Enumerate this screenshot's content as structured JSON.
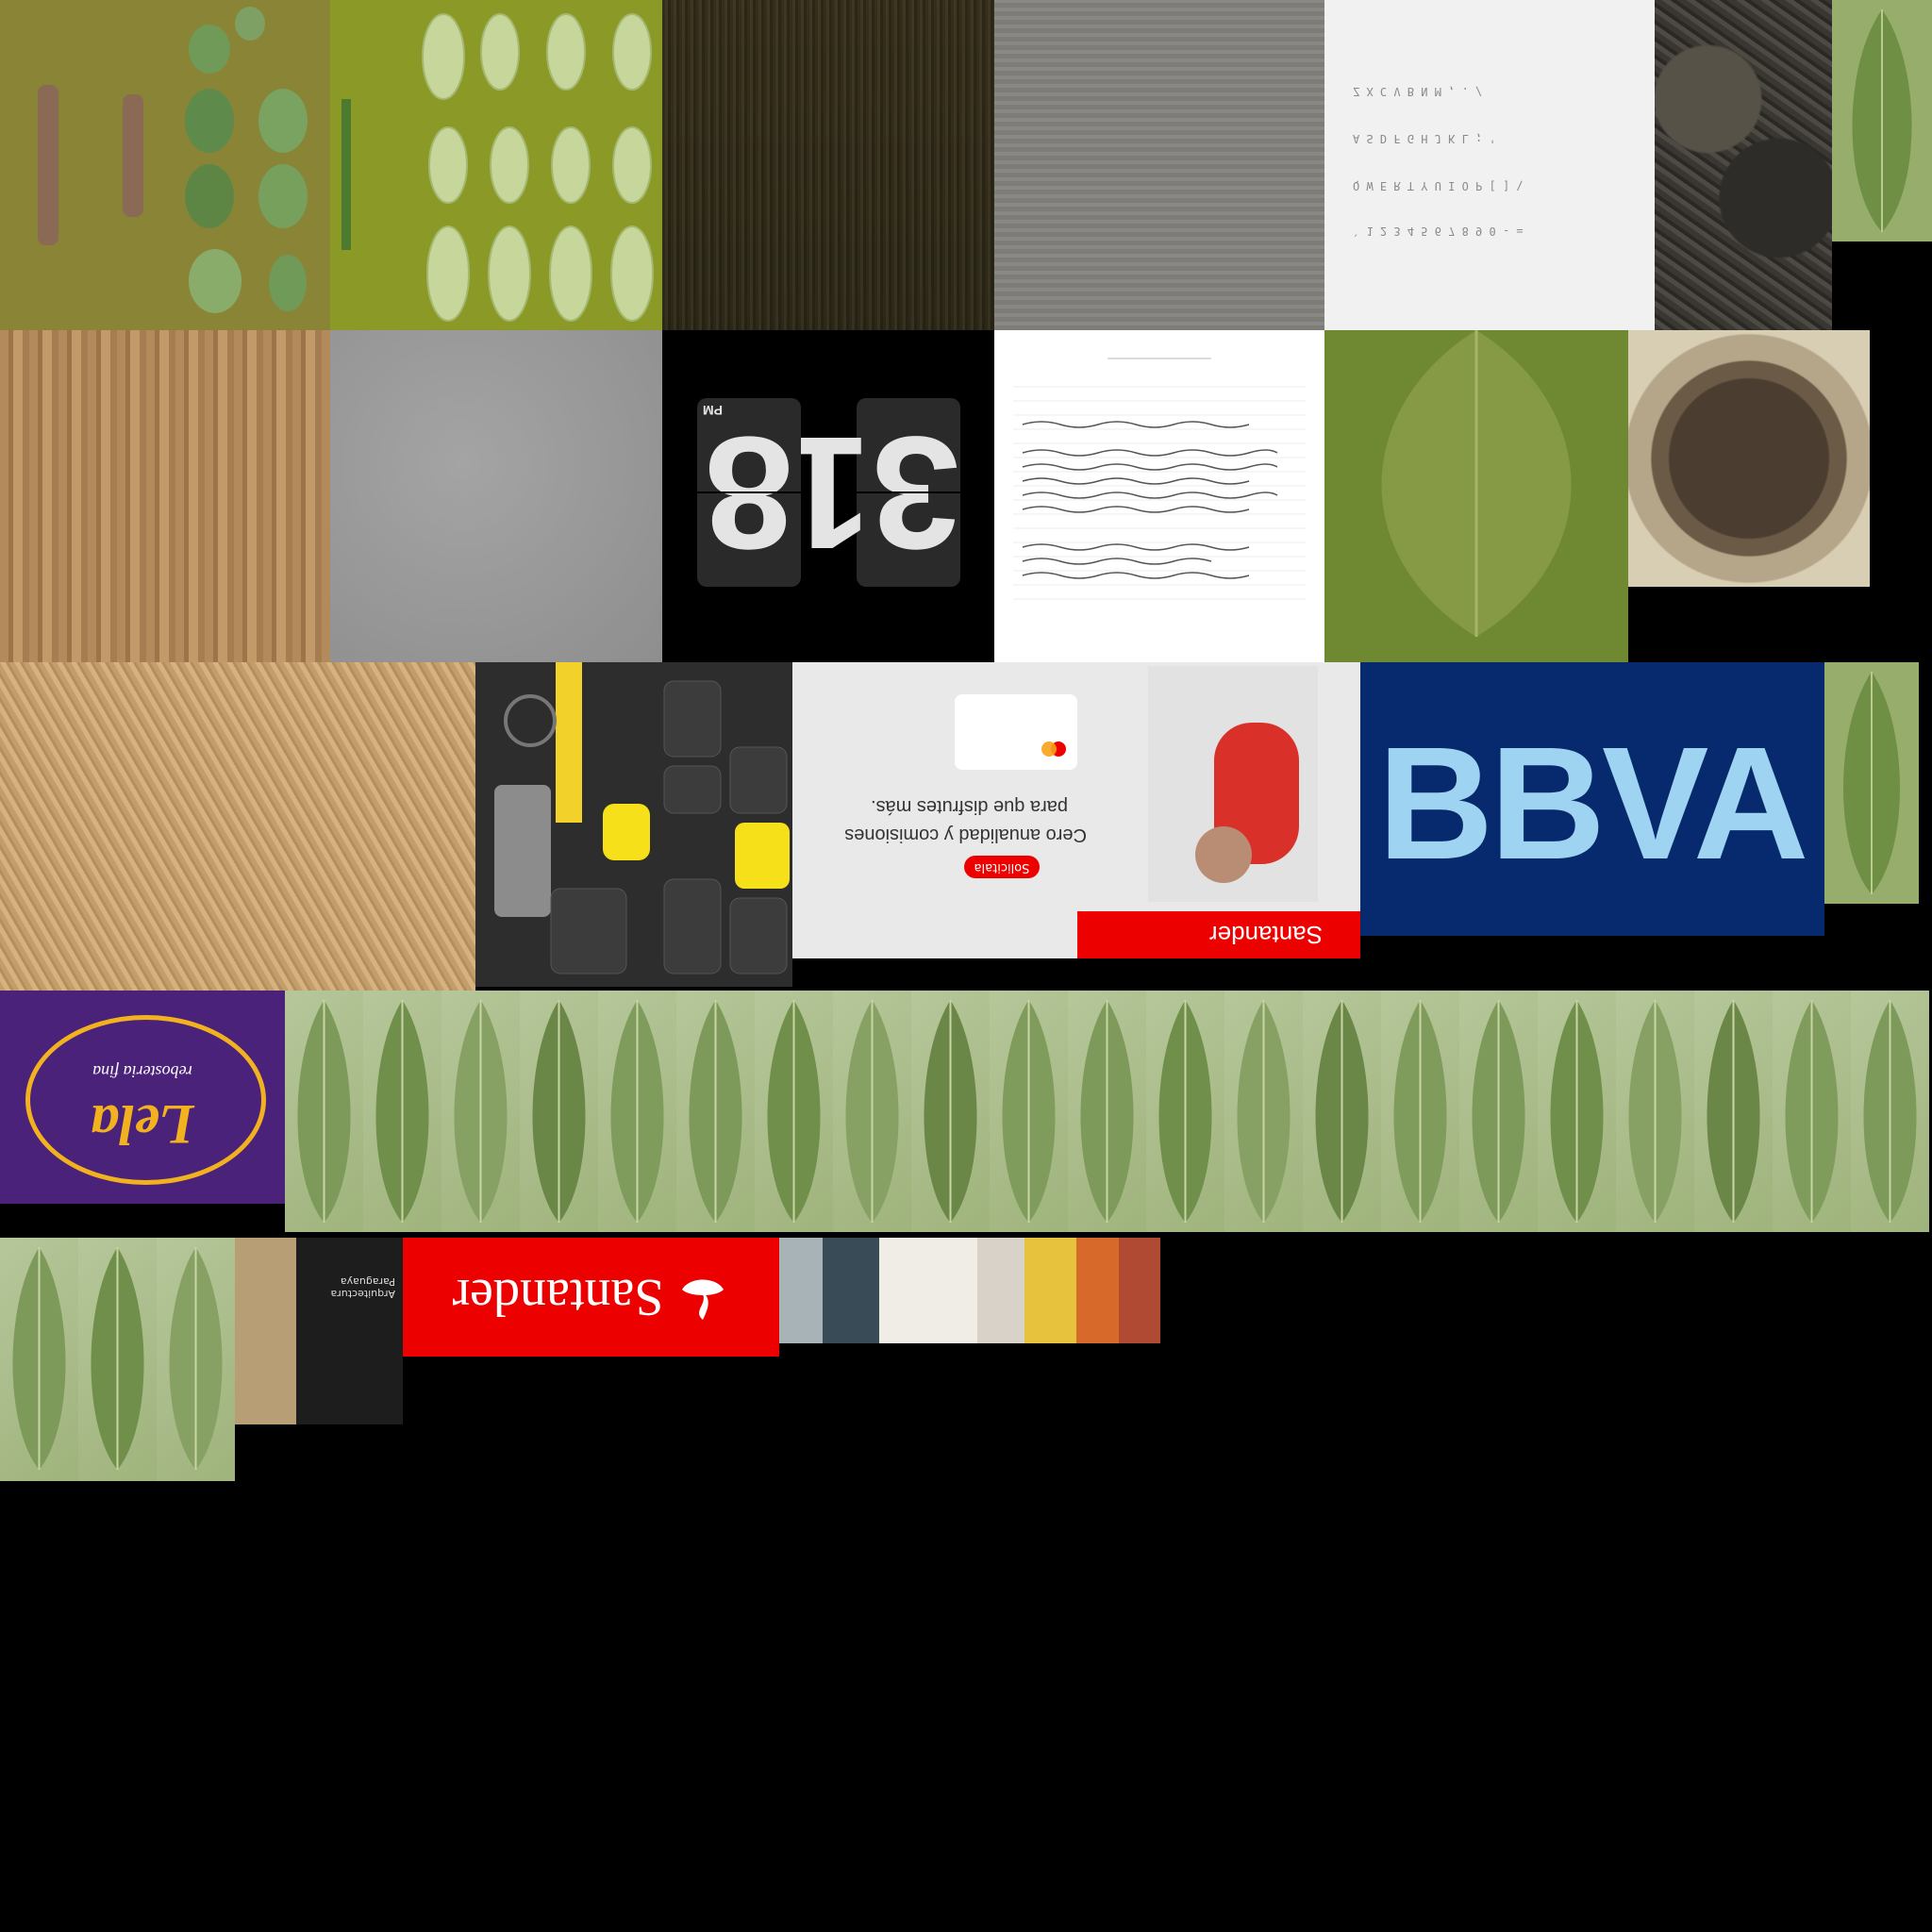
{
  "atlas": {
    "keyboard": {
      "rows": [
        "Z X C V B N M , . /",
        "A S D F G H J K L ; '",
        "Q W E R T Y U I O P [ ] \\",
        "` 1 2 3 4 5 6 7 8 9 0 - ="
      ]
    },
    "clock": {
      "ampm": "PM",
      "hour": "8",
      "minute": "31"
    },
    "santander_ad": {
      "brand": "Santander",
      "headline_1": "Cero anualidad y comisiones",
      "headline_2": "para que disfrutes más.",
      "cta": "Solicitala"
    },
    "bbva": {
      "logo": "BBVA"
    },
    "purple_logo": {
      "wordmark": "Lela",
      "sub": "rebosteria fina"
    },
    "santander_logo": {
      "brand": "Santander"
    },
    "book": {
      "title": "Arquitectura Paraguaya"
    },
    "colors": {
      "santander_red": "#ec0000",
      "bbva_blue": "#072a6e",
      "logo_purple": "#4b2279",
      "logo_gold": "#f2b21f"
    }
  }
}
